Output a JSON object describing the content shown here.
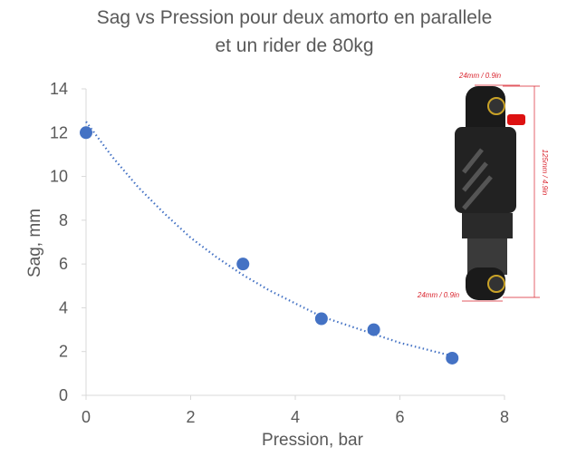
{
  "chart_data": {
    "type": "scatter",
    "title": [
      "Sag vs Pression pour deux amorto en parallele",
      "et un rider de 80kg"
    ],
    "x_label": "Pression, bar",
    "y_label": "Sag, mm",
    "x": [
      0,
      3,
      4.5,
      5.5,
      7
    ],
    "values": [
      12,
      6,
      3.5,
      3,
      1.7
    ],
    "color": "#4472c4",
    "trendline": {
      "x": [
        0,
        0.5,
        1,
        1.5,
        2,
        2.5,
        3,
        3.5,
        4,
        4.5,
        5,
        5.5,
        6,
        6.5,
        7
      ],
      "values": [
        12.5,
        10.9,
        9.5,
        8.3,
        7.2,
        6.3,
        5.5,
        4.8,
        4.2,
        3.6,
        3.2,
        2.8,
        2.4,
        2.1,
        1.8
      ],
      "color": "#4472c4"
    },
    "xlim": [
      0,
      8
    ],
    "xticks": [
      0,
      2,
      4,
      6,
      8
    ],
    "ylim": [
      0,
      14
    ],
    "yticks": [
      0,
      2,
      4,
      6,
      8,
      10,
      12,
      14
    ],
    "grid": false,
    "annotations": [
      "24mm / 0.9in",
      "125mm / 4.9in",
      "24mm / 0.9in"
    ]
  }
}
